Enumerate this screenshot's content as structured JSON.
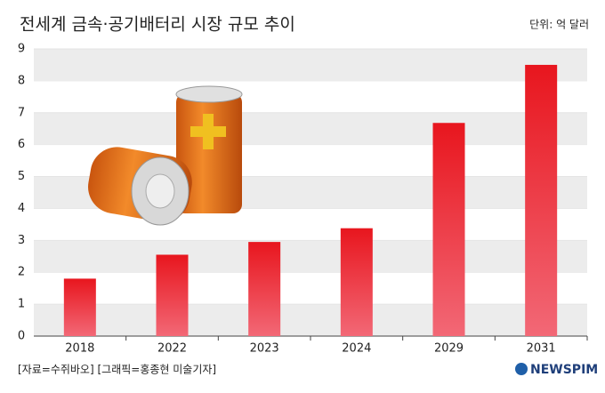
{
  "chart_data": {
    "type": "bar",
    "title": "전세계 금속·공기배터리 시장 규모 추이",
    "unit": "단위: 억 달러",
    "categories": [
      "2018",
      "2022",
      "2023",
      "2024",
      "2029",
      "2031"
    ],
    "values": [
      1.8,
      2.55,
      2.95,
      3.38,
      6.68,
      8.5
    ],
    "color": "#e8161e",
    "ylim": [
      0,
      9
    ],
    "yticks": [
      0,
      1,
      2,
      3,
      4,
      5,
      6,
      7,
      8,
      9
    ],
    "grid": "banded",
    "source": "[자료=수쥐바오] [그래픽=홍종현 미술기자]",
    "logo": "NEWSPIM"
  }
}
